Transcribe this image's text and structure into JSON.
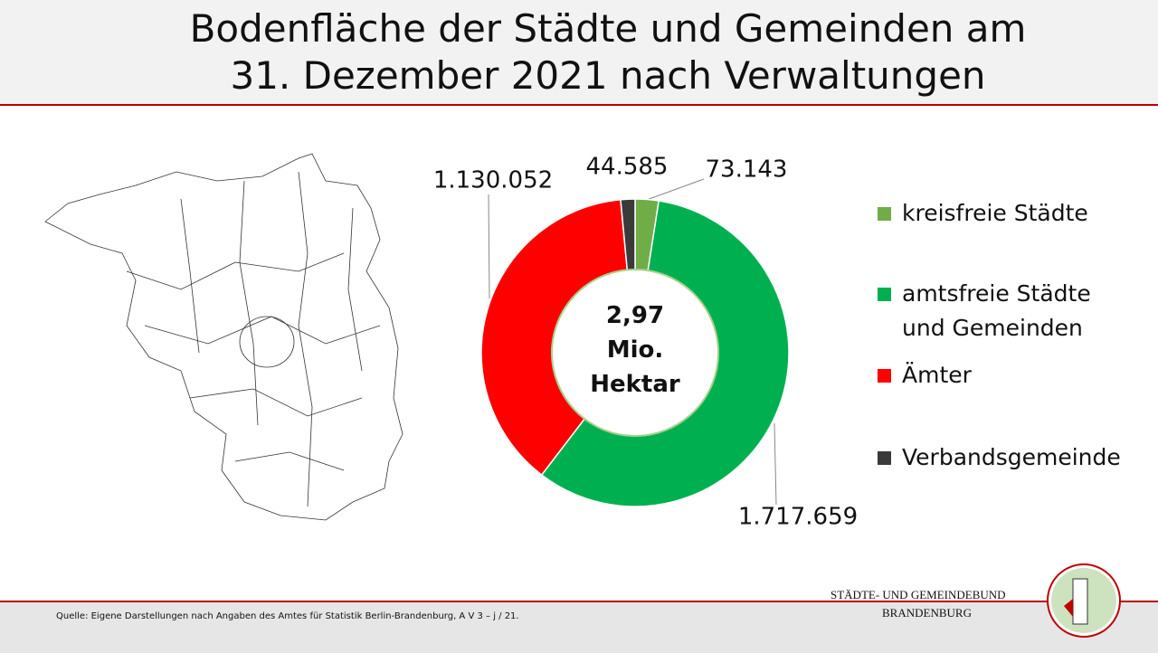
{
  "chart_data": {
    "type": "donut",
    "title": "Bodenfläche der Städte und Gemeinden am 31. Dezember 2021 nach Verwaltungen",
    "center_label": "2,97 Mio. Hektar",
    "categories": [
      "kreisfreie Städte",
      "amtsfreie Städte und Gemeinden",
      "Ämter",
      "Verbandsgemeinde"
    ],
    "values": [
      73143,
      1717659,
      1130052,
      44585
    ],
    "value_labels": [
      "73.143",
      "1.717.659",
      "1.130.052",
      "44.585"
    ],
    "colors": [
      "#70ad47",
      "#00b050",
      "#ff0000",
      "#3a3a3a"
    ],
    "legend": "right"
  },
  "source": "Quelle:  Eigene Darstellungen nach Angaben des Amtes für Statistik Berlin-Brandenburg, A V 3 – j / 21.",
  "logo": {
    "line1": "STÄDTE-  UND GEMEINDEBUND",
    "line2": "BRANDENBURG"
  }
}
